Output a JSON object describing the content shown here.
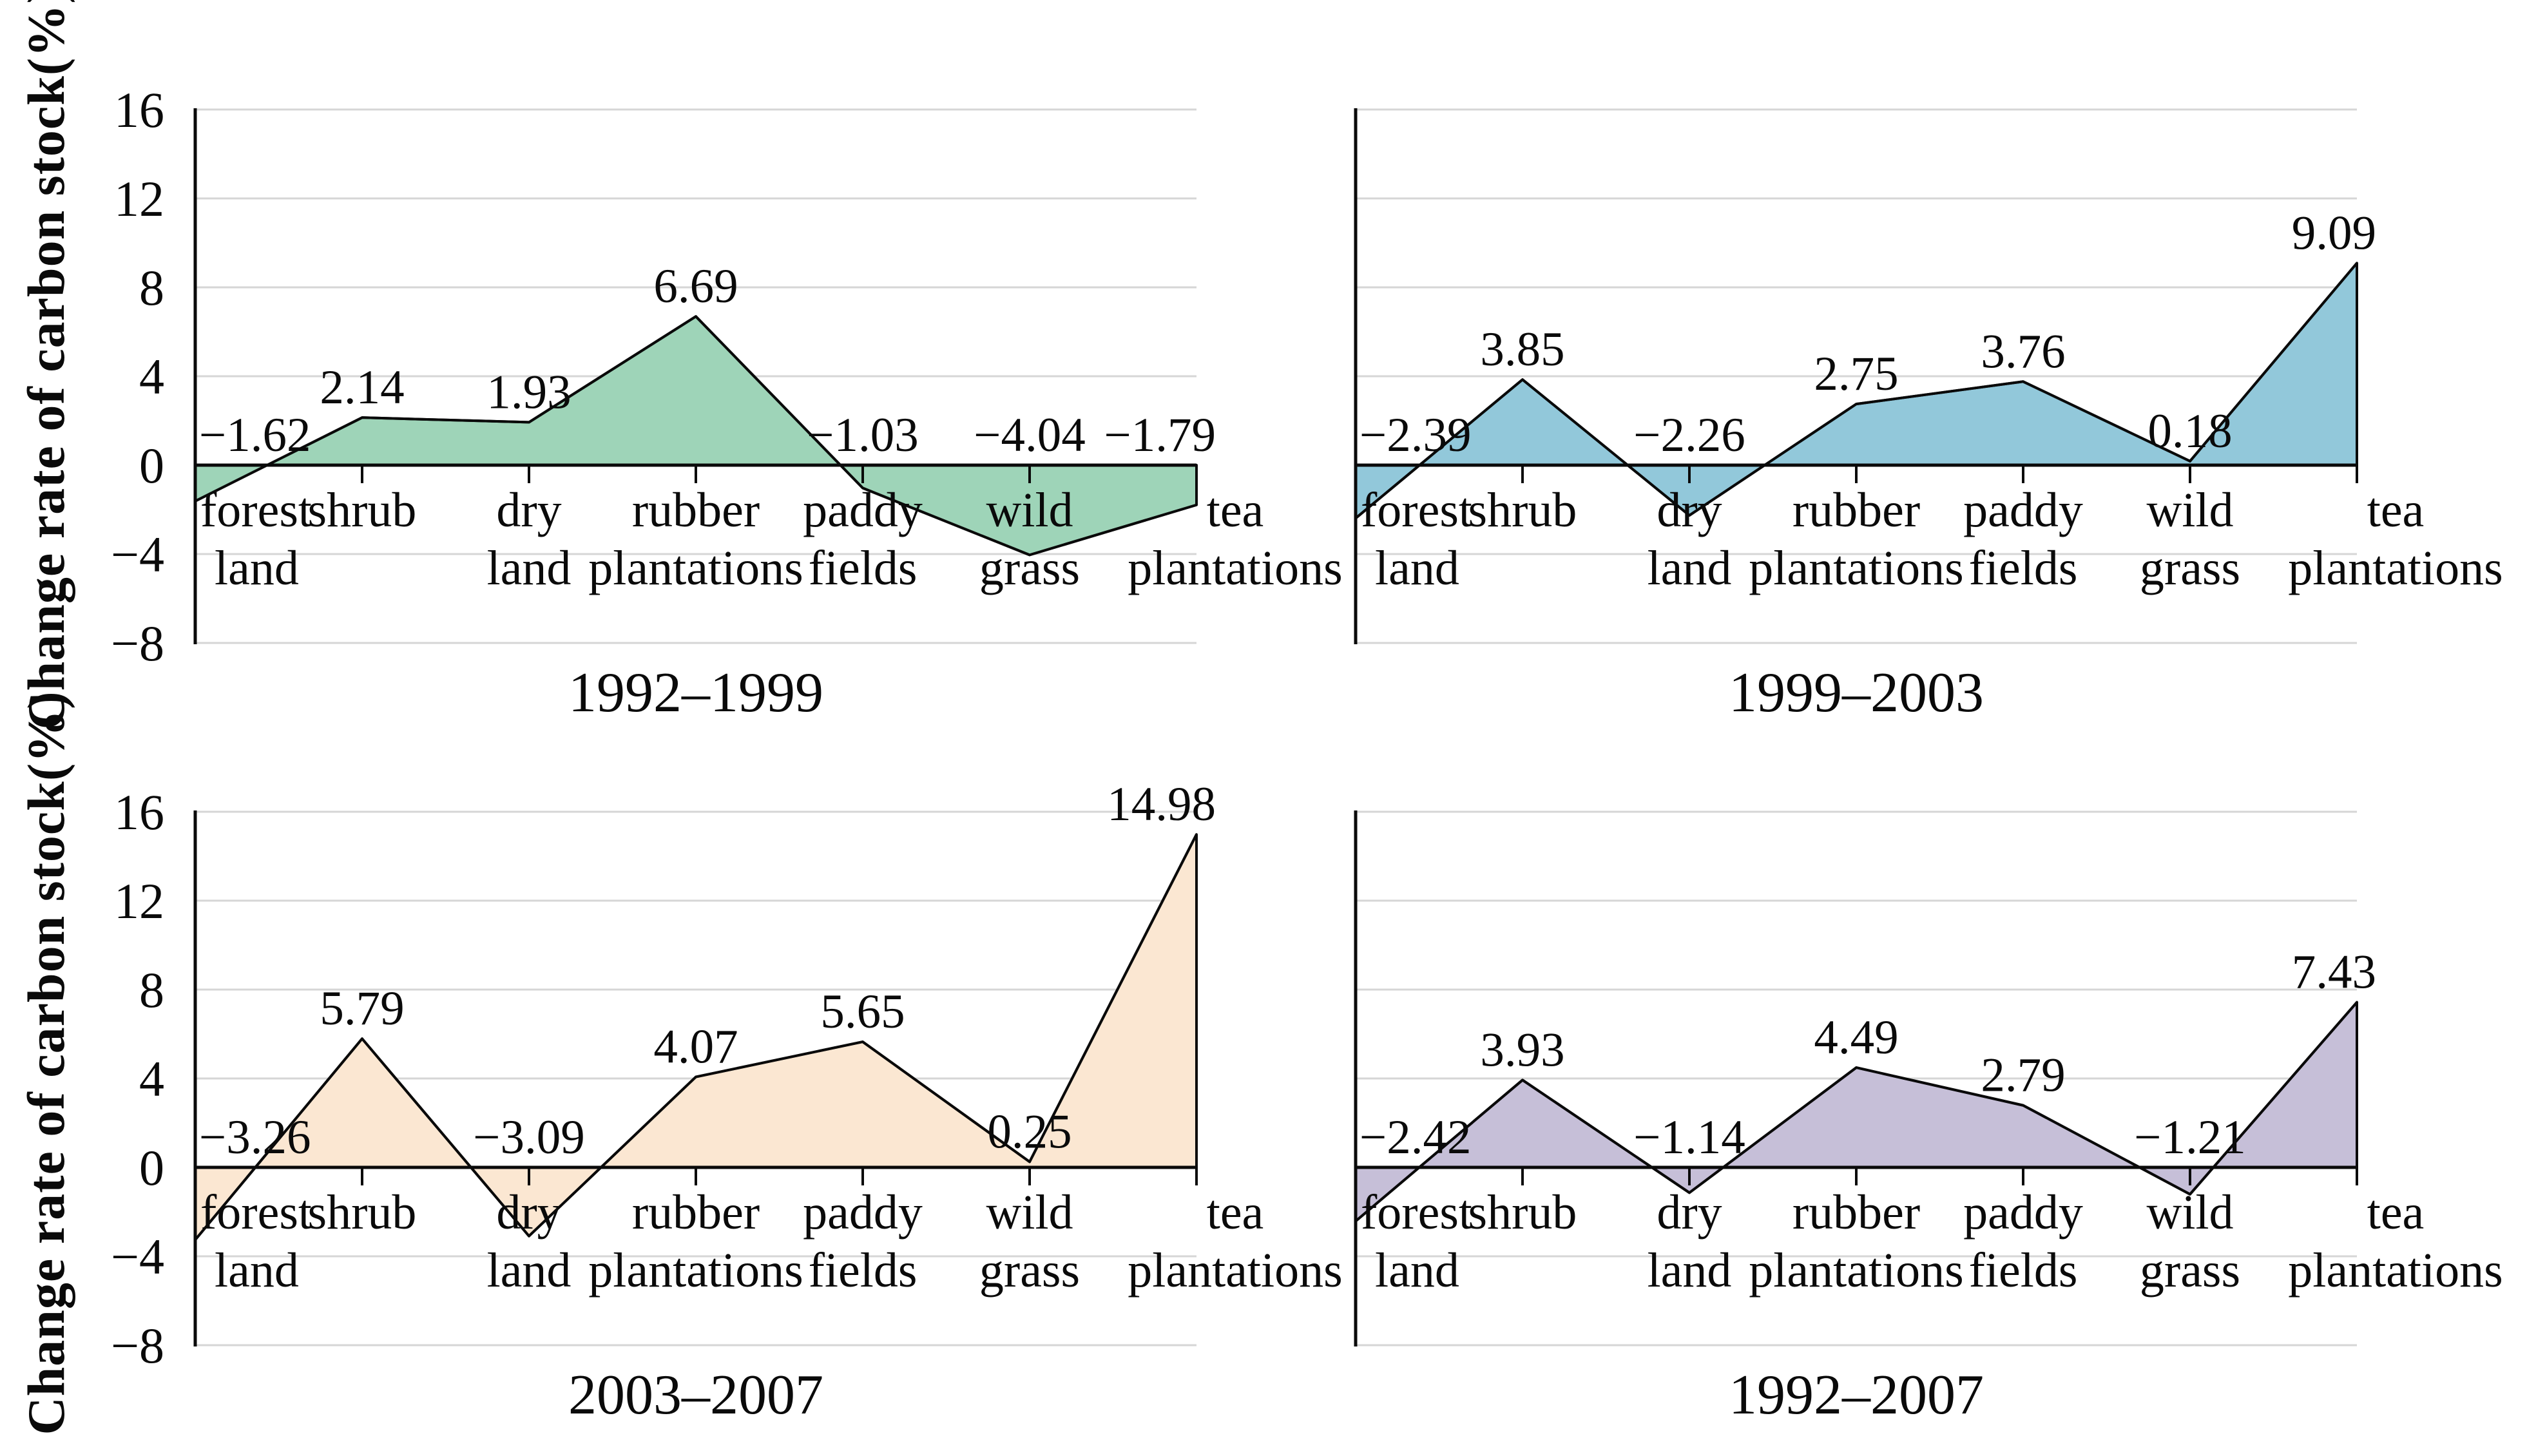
{
  "figure": {
    "y_axis_title": "Change rate of carbon stock(%)",
    "y_ticks": [
      16,
      12,
      8,
      4,
      0,
      -4,
      -8
    ],
    "y_tick_labels": [
      "16",
      "12",
      "8",
      "4",
      "0",
      "−4",
      "−8"
    ],
    "background_color": "#ffffff",
    "gridline_color": "#d6d6d6",
    "axis_color": "#0a0a0a"
  },
  "chart_data": [
    {
      "type": "area",
      "title": "1992–1999",
      "ylabel": "Change rate of carbon stock(%)",
      "ylim": [
        -8,
        16
      ],
      "grid": true,
      "legend_position": "none",
      "categories": [
        "forest land",
        "shrub",
        "dry land",
        "rubber plantations",
        "paddy fields",
        "wild grass",
        "tea plantations"
      ],
      "categories_line1": [
        "forest",
        "shrub",
        "dry",
        "rubber",
        "paddy",
        "wild",
        "tea"
      ],
      "categories_line2": [
        "land",
        "",
        "land",
        "plantations",
        "fields",
        "grass",
        "plantations"
      ],
      "values": [
        -1.62,
        2.14,
        1.93,
        6.69,
        -1.03,
        -4.04,
        -1.79
      ],
      "value_labels": [
        "−1.62",
        "2.14",
        "1.93",
        "6.69",
        "−1.03",
        "−4.04",
        "−1.79"
      ],
      "fill_color": "#9ed4b8"
    },
    {
      "type": "area",
      "title": "1999–2003",
      "ylabel": "Change rate of carbon stock(%)",
      "ylim": [
        -8,
        16
      ],
      "grid": true,
      "legend_position": "none",
      "categories": [
        "forest land",
        "shrub",
        "dry land",
        "rubber plantations",
        "paddy fields",
        "wild grass",
        "tea plantations"
      ],
      "categories_line1": [
        "forest",
        "shrub",
        "dry",
        "rubber",
        "paddy",
        "wild",
        "tea"
      ],
      "categories_line2": [
        "land",
        "",
        "land",
        "plantations",
        "fields",
        "grass",
        "plantations"
      ],
      "values": [
        -2.39,
        3.85,
        -2.26,
        2.75,
        3.76,
        0.18,
        9.09
      ],
      "value_labels": [
        "−2.39",
        "3.85",
        "−2.26",
        "2.75",
        "3.76",
        "0.18",
        "9.09"
      ],
      "fill_color": "#92c8da"
    },
    {
      "type": "area",
      "title": "2003–2007",
      "ylabel": "Change rate of carbon stock(%)",
      "ylim": [
        -8,
        16
      ],
      "grid": true,
      "legend_position": "none",
      "categories": [
        "forest land",
        "shrub",
        "dry land",
        "rubber plantations",
        "paddy fields",
        "wild grass",
        "tea plantations"
      ],
      "categories_line1": [
        "forest",
        "shrub",
        "dry",
        "rubber",
        "paddy",
        "wild",
        "tea"
      ],
      "categories_line2": [
        "land",
        "",
        "land",
        "plantations",
        "fields",
        "grass",
        "plantations"
      ],
      "values": [
        -3.26,
        5.79,
        -3.09,
        4.07,
        5.65,
        0.25,
        14.98
      ],
      "value_labels": [
        "−3.26",
        "5.79",
        "−3.09",
        "4.07",
        "5.65",
        "0.25",
        "14.98"
      ],
      "fill_color": "#fbe7d2"
    },
    {
      "type": "area",
      "title": "1992–2007",
      "ylabel": "Change rate of carbon stock(%)",
      "ylim": [
        -8,
        16
      ],
      "grid": true,
      "legend_position": "none",
      "categories": [
        "forest land",
        "shrub",
        "dry land",
        "rubber plantations",
        "paddy fields",
        "wild grass",
        "tea plantations"
      ],
      "categories_line1": [
        "forest",
        "shrub",
        "dry",
        "rubber",
        "paddy",
        "wild",
        "tea"
      ],
      "categories_line2": [
        "land",
        "",
        "land",
        "plantations",
        "fields",
        "grass",
        "plantations"
      ],
      "values": [
        -2.42,
        3.93,
        -1.14,
        4.49,
        2.79,
        -1.21,
        7.43
      ],
      "value_labels": [
        "−2.42",
        "3.93",
        "−1.14",
        "4.49",
        "2.79",
        "−1.21",
        "7.43"
      ],
      "fill_color": "#c6bfd8"
    }
  ]
}
